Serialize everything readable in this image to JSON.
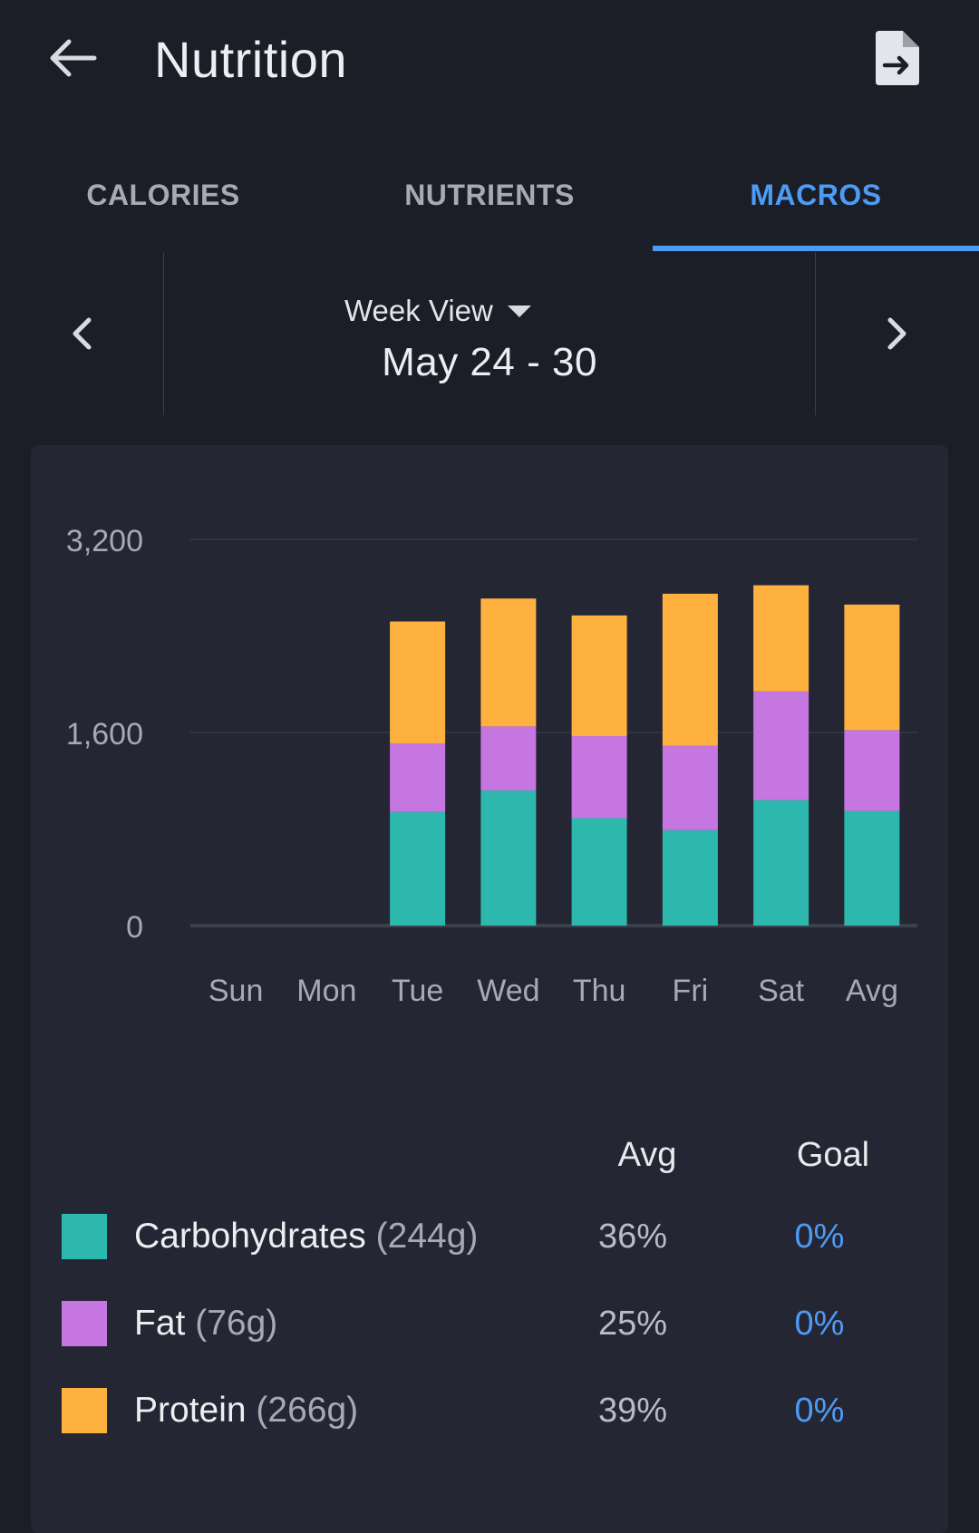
{
  "header": {
    "title": "Nutrition",
    "back_icon": "arrow-left-icon",
    "export_icon": "file-export-icon"
  },
  "tabs": [
    {
      "label": "CALORIES",
      "active": false
    },
    {
      "label": "NUTRIENTS",
      "active": false
    },
    {
      "label": "MACROS",
      "active": true
    }
  ],
  "range": {
    "view_label": "Week View",
    "dates": "May 24 - 30"
  },
  "colors": {
    "carbohydrates": "#2db8ad",
    "fat": "#c676e0",
    "protein": "#feb13f",
    "accent": "#4e9bf5"
  },
  "chart_data": {
    "type": "bar",
    "stacked": true,
    "categories": [
      "Sun",
      "Mon",
      "Tue",
      "Wed",
      "Thu",
      "Fri",
      "Sat",
      "Avg"
    ],
    "ylim": [
      0,
      3200
    ],
    "yticks": [
      0,
      1600,
      3200
    ],
    "ytick_labels": [
      "0",
      "1,600",
      "3,200"
    ],
    "series": [
      {
        "name": "Carbohydrates",
        "color": "#2db8ad",
        "values": [
          0,
          0,
          940,
          1120,
          890,
          790,
          1040,
          950
        ]
      },
      {
        "name": "Fat",
        "color": "#c676e0",
        "values": [
          0,
          0,
          570,
          530,
          680,
          700,
          900,
          670
        ]
      },
      {
        "name": "Protein",
        "color": "#feb13f",
        "values": [
          0,
          0,
          1010,
          1060,
          1000,
          1260,
          880,
          1040
        ]
      }
    ],
    "grid": true
  },
  "legend": {
    "avg_header": "Avg",
    "goal_header": "Goal",
    "rows": [
      {
        "name": "Carbohydrates",
        "amount": "(244g)",
        "avg": "36%",
        "goal": "0%"
      },
      {
        "name": "Fat",
        "amount": "(76g)",
        "avg": "25%",
        "goal": "0%"
      },
      {
        "name": "Protein",
        "amount": "(266g)",
        "avg": "39%",
        "goal": "0%"
      }
    ]
  }
}
